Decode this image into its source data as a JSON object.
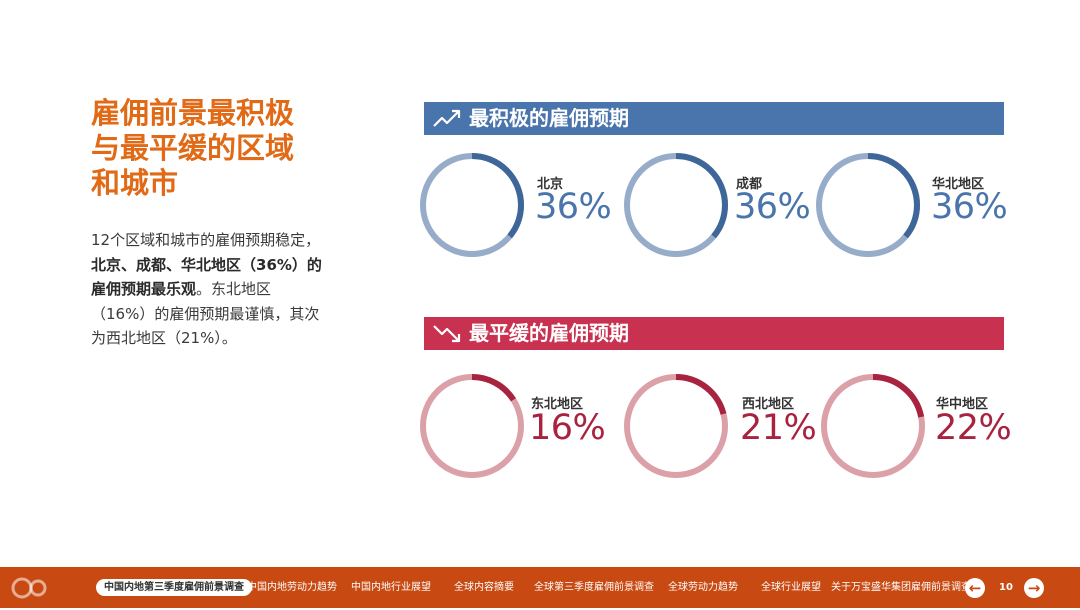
{
  "title": {
    "line1": "雇佣前景最积极",
    "line2": "与最平缓的区域",
    "line3": "和城市"
  },
  "description": {
    "line1": "12个区域和城市的雇佣预期稳定，",
    "line2_bold": "北京、成都、华北地区（36%）的",
    "line3_bold": "雇佣预期最乐观",
    "line3_rest": "。东北地区",
    "line4": "（16%）的雇佣预期最谨慎，其次",
    "line5": "为西北地区（21%）。"
  },
  "positive": {
    "header": "最积极的雇佣预期",
    "icon": "trend-up-icon",
    "color": "#4a74ac",
    "items": [
      {
        "city": "北京",
        "pct": "36%",
        "value": 0.36
      },
      {
        "city": "成都",
        "pct": "36%",
        "value": 0.36
      },
      {
        "city": "华北地区",
        "pct": "36%",
        "value": 0.36
      }
    ]
  },
  "negative": {
    "header": "最平缓的雇佣预期",
    "icon": "trend-down-icon",
    "color": "#c8314f",
    "items": [
      {
        "city": "东北地区",
        "pct": "16%",
        "value": 0.16
      },
      {
        "city": "西北地区",
        "pct": "21%",
        "value": 0.21
      },
      {
        "city": "华中地区",
        "pct": "22%",
        "value": 0.22
      }
    ]
  },
  "footer": {
    "nav": [
      "中国内地第三季度雇佣前景调查",
      "中国内地劳动力趋势",
      "中国内地行业展望",
      "全球内容摘要",
      "全球第三季度雇佣前景调查",
      "全球劳动力趋势",
      "全球行业展望",
      "关于万宝盛华集团雇佣前景调查"
    ],
    "active_index": 0,
    "page": "10",
    "prev_icon": "arrow-left-icon",
    "next_icon": "arrow-right-icon"
  }
}
